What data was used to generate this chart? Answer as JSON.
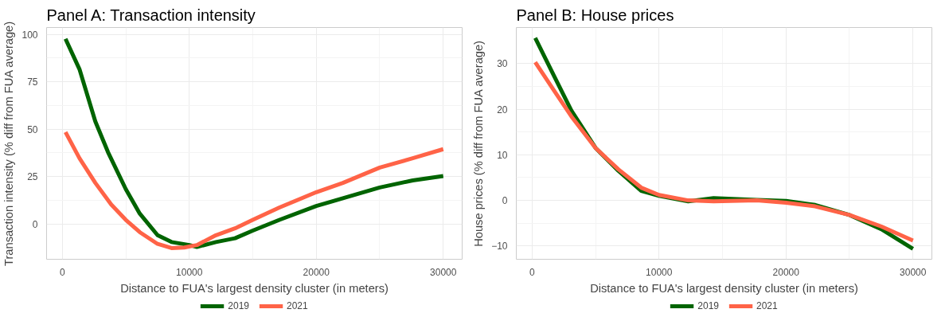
{
  "chart_data": [
    {
      "type": "line",
      "title": "Panel A: Transaction intensity",
      "xlabel": "Distance to FUA's largest density cluster (in meters)",
      "ylabel": "Transaction intensity (% diff from FUA average)",
      "xlim": [
        -1240,
        31490
      ],
      "ylim": [
        -18.7,
        103.6
      ],
      "xticks": [
        0,
        10000,
        20000,
        30000
      ],
      "yticks": [
        0,
        25,
        50,
        75,
        100
      ],
      "grid": true,
      "legend": "bottom",
      "series": [
        {
          "name": "2019",
          "color": "#006400",
          "x": [
            250,
            1350,
            2600,
            3600,
            5000,
            6100,
            7500,
            8600,
            10000,
            10600,
            12100,
            13600,
            15000,
            17100,
            20000,
            22100,
            25000,
            27600,
            30000
          ],
          "values": [
            97.6,
            81.6,
            54,
            37.8,
            18.3,
            5.4,
            -6,
            -9.6,
            -11.2,
            -12.2,
            -9.6,
            -7.6,
            -3.6,
            2.1,
            9.4,
            13.5,
            19.2,
            22.9,
            25.2
          ]
        },
        {
          "name": "2021",
          "color": "#ff6347",
          "x": [
            250,
            1350,
            2600,
            3850,
            5000,
            6100,
            7500,
            8600,
            9600,
            10600,
            12100,
            13600,
            15000,
            17100,
            20000,
            22100,
            25000,
            27600,
            30000
          ],
          "values": [
            48.4,
            34.6,
            21.6,
            10.2,
            2.1,
            -4.4,
            -10.6,
            -12.8,
            -12.5,
            -11.2,
            -6,
            -2.4,
            2.1,
            8.6,
            16.7,
            21.6,
            29.7,
            34.6,
            39.4
          ]
        }
      ]
    },
    {
      "type": "line",
      "title": "Panel B: House prices",
      "xlabel": "Distance to FUA's largest density cluster (in meters)",
      "ylabel": "House prices (% diff from FUA average)",
      "xlim": [
        -1240,
        31490
      ],
      "ylim": [
        -12.9,
        37.9
      ],
      "xticks": [
        0,
        10000,
        20000,
        30000
      ],
      "yticks": [
        -10,
        0,
        10,
        20,
        30
      ],
      "grid": true,
      "legend": "bottom",
      "series": [
        {
          "name": "2019",
          "color": "#006400",
          "x": [
            250,
            1750,
            3100,
            5000,
            6800,
            8600,
            10000,
            12300,
            14300,
            17700,
            20000,
            22300,
            25000,
            27500,
            30000
          ],
          "values": [
            35.6,
            27.2,
            19.7,
            11.5,
            6.5,
            2.1,
            1.0,
            -0.2,
            0.5,
            0.1,
            -0.1,
            -1.0,
            -3.2,
            -6.3,
            -10.6
          ]
        },
        {
          "name": "2021",
          "color": "#ff6347",
          "x": [
            250,
            1750,
            3100,
            5000,
            6800,
            8600,
            10000,
            12300,
            14300,
            17700,
            20000,
            22300,
            25000,
            27500,
            30000
          ],
          "values": [
            30.3,
            24.0,
            18.4,
            11.5,
            6.8,
            2.8,
            1.2,
            0,
            -0.2,
            0,
            -0.5,
            -1.3,
            -3.2,
            -5.7,
            -8.8
          ]
        }
      ]
    }
  ]
}
